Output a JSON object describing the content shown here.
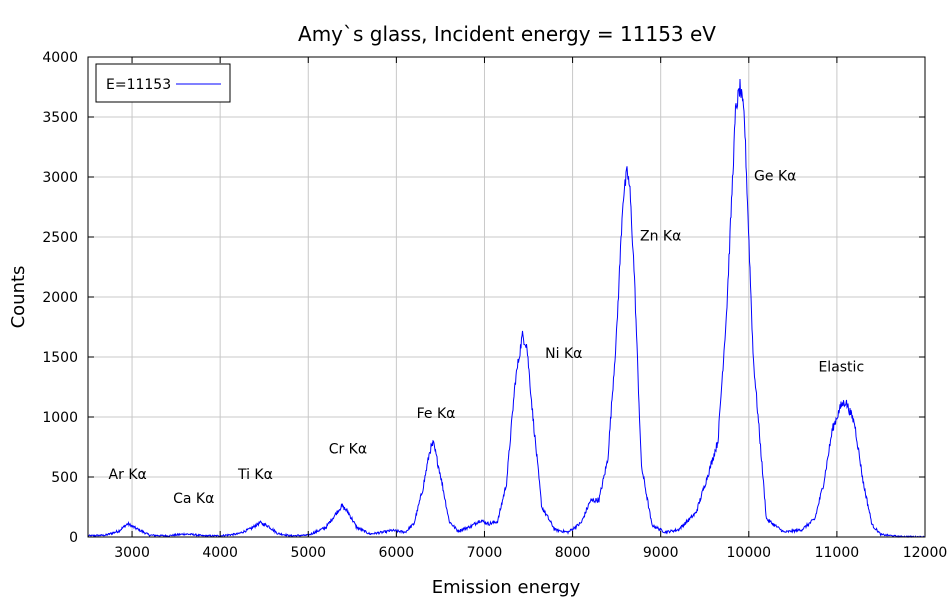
{
  "chart_data": {
    "type": "line",
    "title": "Amy`s glass, Incident energy = 11153 eV",
    "xlabel": "Emission energy",
    "ylabel": "Counts",
    "xlim": [
      2500,
      12000
    ],
    "ylim": [
      0,
      4000
    ],
    "xticks": [
      3000,
      4000,
      5000,
      6000,
      7000,
      8000,
      9000,
      10000,
      11000,
      12000
    ],
    "yticks": [
      0,
      500,
      1000,
      1500,
      2000,
      2500,
      3000,
      3500,
      4000
    ],
    "grid": true,
    "legend_position": "top-left",
    "series": [
      {
        "name": "E=11153",
        "color": "#0000ff",
        "x": [
          2500,
          2700,
          2850,
          2950,
          3050,
          3200,
          3400,
          3600,
          3700,
          3800,
          4000,
          4200,
          4350,
          4450,
          4550,
          4650,
          4800,
          5000,
          5200,
          5300,
          5380,
          5450,
          5550,
          5700,
          5850,
          5950,
          6100,
          6200,
          6300,
          6380,
          6420,
          6500,
          6600,
          6700,
          6850,
          6950,
          7050,
          7150,
          7250,
          7350,
          7430,
          7480,
          7550,
          7650,
          7800,
          7950,
          8100,
          8200,
          8300,
          8400,
          8500,
          8570,
          8620,
          8650,
          8700,
          8780,
          8900,
          9050,
          9200,
          9400,
          9550,
          9650,
          9750,
          9850,
          9900,
          9950,
          10050,
          10200,
          10400,
          10600,
          10750,
          10850,
          10950,
          11050,
          11100,
          11200,
          11300,
          11400,
          11500,
          11700,
          12000
        ],
        "y": [
          10,
          15,
          50,
          110,
          70,
          15,
          10,
          25,
          20,
          10,
          10,
          25,
          70,
          120,
          90,
          30,
          10,
          15,
          80,
          180,
          260,
          210,
          80,
          25,
          40,
          55,
          40,
          110,
          400,
          720,
          780,
          520,
          130,
          50,
          90,
          140,
          110,
          130,
          450,
          1300,
          1680,
          1600,
          1000,
          250,
          60,
          40,
          120,
          300,
          310,
          650,
          1700,
          2800,
          3050,
          2900,
          2200,
          600,
          100,
          40,
          60,
          200,
          550,
          800,
          1900,
          3550,
          3750,
          3500,
          1500,
          150,
          40,
          60,
          150,
          450,
          900,
          1100,
          1130,
          950,
          450,
          100,
          20,
          5,
          2
        ]
      }
    ],
    "annotations": [
      {
        "text": "Ar Kα",
        "x": 2950,
        "y": 485
      },
      {
        "text": "Ca Kα",
        "x": 3700,
        "y": 285
      },
      {
        "text": "Ti Kα",
        "x": 4400,
        "y": 485
      },
      {
        "text": "Cr Kα",
        "x": 5450,
        "y": 695
      },
      {
        "text": "Fe Kα",
        "x": 6450,
        "y": 990
      },
      {
        "text": "Ni Kα",
        "x": 7900,
        "y": 1490
      },
      {
        "text": "Zn Kα",
        "x": 9000,
        "y": 2470
      },
      {
        "text": "Ge Kα",
        "x": 10300,
        "y": 2970
      },
      {
        "text": "Elastic",
        "x": 11050,
        "y": 1380
      }
    ]
  }
}
